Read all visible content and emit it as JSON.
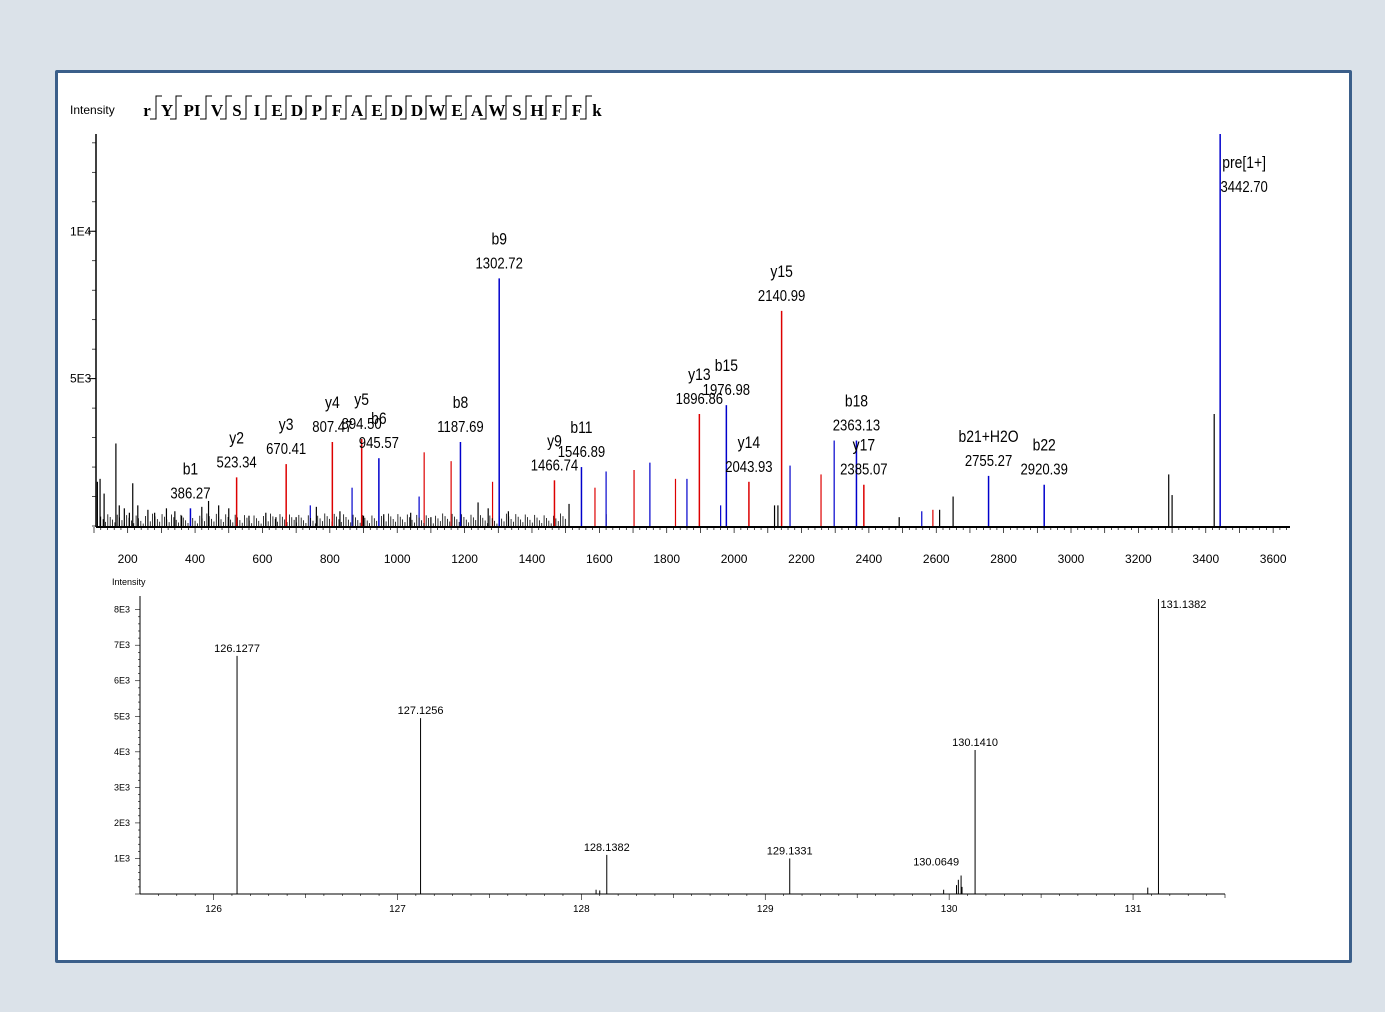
{
  "colors": {
    "b_ion": "#0000cc",
    "y_ion": "#dd0000",
    "other": "#000000",
    "frame": "#3b5f8a"
  },
  "chart_data": [
    {
      "type": "bar",
      "subtype": "ms2-spectrum",
      "ylabel": "Intensity",
      "xlim": [
        100,
        3650
      ],
      "ylim": [
        0,
        13300
      ],
      "x_ticks": [
        "200",
        "400",
        "600",
        "800",
        "1000",
        "1200",
        "1400",
        "1600",
        "1800",
        "2000",
        "2200",
        "2400",
        "2600",
        "2800",
        "3000",
        "3200",
        "3400",
        "3600"
      ],
      "y_ticks": [
        "5E3",
        "1E4"
      ],
      "sequence": [
        "r",
        "Y",
        "PI",
        "V",
        "S",
        "I",
        "E",
        "D",
        "P",
        "F",
        "A",
        "E",
        "D",
        "D",
        "W",
        "E",
        "A",
        "W",
        "S",
        "H",
        "F",
        "F",
        "k"
      ],
      "peaks": [
        {
          "mz": 386.27,
          "i": 600,
          "ion": "b",
          "name": "b1",
          "value": "386.27"
        },
        {
          "mz": 523.34,
          "i": 1650,
          "ion": "y",
          "name": "y2",
          "value": "523.34"
        },
        {
          "mz": 670.41,
          "i": 2100,
          "ion": "y",
          "name": "y3",
          "value": "670.41"
        },
        {
          "mz": 807.47,
          "i": 2850,
          "ion": "y",
          "name": "y4",
          "value": "807.47"
        },
        {
          "mz": 894.5,
          "i": 2950,
          "ion": "y",
          "name": "y5",
          "value": "894.50"
        },
        {
          "mz": 945.57,
          "i": 2300,
          "ion": "b",
          "name": "b6",
          "value": "945.57"
        },
        {
          "mz": 1187.69,
          "i": 2850,
          "ion": "b",
          "name": "b8",
          "value": "1187.69"
        },
        {
          "mz": 1302.72,
          "i": 8400,
          "ion": "b",
          "name": "b9",
          "value": "1302.72"
        },
        {
          "mz": 1466.74,
          "i": 1550,
          "ion": "y",
          "name": "y9",
          "value": "1466.74"
        },
        {
          "mz": 1546.89,
          "i": 2000,
          "ion": "b",
          "name": "b11",
          "value": "1546.89"
        },
        {
          "mz": 1896.86,
          "i": 3800,
          "ion": "y",
          "name": "y13",
          "value": "1896.86"
        },
        {
          "mz": 1976.98,
          "i": 4100,
          "ion": "b",
          "name": "b15",
          "value": "1976.98"
        },
        {
          "mz": 2043.93,
          "i": 1500,
          "ion": "y",
          "name": "y14",
          "value": "2043.93"
        },
        {
          "mz": 2140.99,
          "i": 7300,
          "ion": "y",
          "name": "y15",
          "value": "2140.99"
        },
        {
          "mz": 2363.13,
          "i": 2900,
          "ion": "b",
          "name": "b18",
          "value": "2363.13"
        },
        {
          "mz": 2385.07,
          "i": 1400,
          "ion": "y",
          "name": "y17",
          "value": "2385.07"
        },
        {
          "mz": 2755.27,
          "i": 1700,
          "ion": "b",
          "name": "b21+H2O",
          "value": "2755.27"
        },
        {
          "mz": 2920.39,
          "i": 1400,
          "ion": "b",
          "name": "b22",
          "value": "2920.39"
        },
        {
          "mz": 3442.7,
          "i": 13300,
          "ion": "b",
          "name": "pre[1+]",
          "value": "3442.70"
        }
      ],
      "unlabeled_peaks": [
        {
          "mz": 110,
          "i": 1500,
          "ion": "o"
        },
        {
          "mz": 118,
          "i": 1600,
          "ion": "o"
        },
        {
          "mz": 130,
          "i": 1100,
          "ion": "o"
        },
        {
          "mz": 165,
          "i": 2800,
          "ion": "o"
        },
        {
          "mz": 175,
          "i": 700,
          "ion": "o"
        },
        {
          "mz": 190,
          "i": 600,
          "ion": "o"
        },
        {
          "mz": 205,
          "i": 450,
          "ion": "o"
        },
        {
          "mz": 215,
          "i": 1450,
          "ion": "o"
        },
        {
          "mz": 230,
          "i": 700,
          "ion": "o"
        },
        {
          "mz": 260,
          "i": 550,
          "ion": "o"
        },
        {
          "mz": 280,
          "i": 450,
          "ion": "o"
        },
        {
          "mz": 315,
          "i": 600,
          "ion": "o"
        },
        {
          "mz": 340,
          "i": 500,
          "ion": "o"
        },
        {
          "mz": 360,
          "i": 350,
          "ion": "o"
        },
        {
          "mz": 420,
          "i": 650,
          "ion": "o"
        },
        {
          "mz": 440,
          "i": 850,
          "ion": "o"
        },
        {
          "mz": 470,
          "i": 700,
          "ion": "o"
        },
        {
          "mz": 500,
          "i": 600,
          "ion": "o"
        },
        {
          "mz": 560,
          "i": 350,
          "ion": "o"
        },
        {
          "mz": 610,
          "i": 450,
          "ion": "o"
        },
        {
          "mz": 640,
          "i": 300,
          "ion": "o"
        },
        {
          "mz": 700,
          "i": 300,
          "ion": "o"
        },
        {
          "mz": 760,
          "i": 650,
          "ion": "o"
        },
        {
          "mz": 830,
          "i": 500,
          "ion": "o"
        },
        {
          "mz": 900,
          "i": 350,
          "ion": "o"
        },
        {
          "mz": 960,
          "i": 400,
          "ion": "o"
        },
        {
          "mz": 1040,
          "i": 450,
          "ion": "o"
        },
        {
          "mz": 1100,
          "i": 300,
          "ion": "o"
        },
        {
          "mz": 1240,
          "i": 800,
          "ion": "o"
        },
        {
          "mz": 1270,
          "i": 600,
          "ion": "o"
        },
        {
          "mz": 1330,
          "i": 500,
          "ion": "o"
        },
        {
          "mz": 1510,
          "i": 750,
          "ion": "o"
        },
        {
          "mz": 1620,
          "i": 400,
          "ion": "o"
        },
        {
          "mz": 2120,
          "i": 700,
          "ion": "o"
        },
        {
          "mz": 2130,
          "i": 700,
          "ion": "o"
        },
        {
          "mz": 2490,
          "i": 300,
          "ion": "o"
        },
        {
          "mz": 2610,
          "i": 550,
          "ion": "o"
        },
        {
          "mz": 2650,
          "i": 1000,
          "ion": "o"
        },
        {
          "mz": 3290,
          "i": 1750,
          "ion": "o"
        },
        {
          "mz": 3300,
          "i": 1050,
          "ion": "o"
        },
        {
          "mz": 3425,
          "i": 3800,
          "ion": "o"
        },
        {
          "mz": 742,
          "i": 700,
          "ion": "b"
        },
        {
          "mz": 866,
          "i": 1300,
          "ion": "b"
        },
        {
          "mz": 1065,
          "i": 1000,
          "ion": "b"
        },
        {
          "mz": 1620,
          "i": 1850,
          "ion": "b"
        },
        {
          "mz": 1750,
          "i": 2150,
          "ion": "b"
        },
        {
          "mz": 1860,
          "i": 1600,
          "ion": "b"
        },
        {
          "mz": 1960,
          "i": 700,
          "ion": "b"
        },
        {
          "mz": 2166,
          "i": 2050,
          "ion": "b"
        },
        {
          "mz": 2297,
          "i": 2900,
          "ion": "b"
        },
        {
          "mz": 2557,
          "i": 500,
          "ion": "b"
        },
        {
          "mz": 1080,
          "i": 2500,
          "ion": "y"
        },
        {
          "mz": 1160,
          "i": 2200,
          "ion": "y"
        },
        {
          "mz": 1283,
          "i": 1500,
          "ion": "y"
        },
        {
          "mz": 1587,
          "i": 1300,
          "ion": "y"
        },
        {
          "mz": 1703,
          "i": 1900,
          "ion": "y"
        },
        {
          "mz": 1826,
          "i": 1600,
          "ion": "y"
        },
        {
          "mz": 2258,
          "i": 1750,
          "ion": "y"
        },
        {
          "mz": 2590,
          "i": 550,
          "ion": "y"
        }
      ]
    },
    {
      "type": "bar",
      "subtype": "reporter-ion-spectrum",
      "ylabel": "Intensity",
      "xlim": [
        125.6,
        131.5
      ],
      "ylim": [
        0,
        8300
      ],
      "x_ticks": [
        "126",
        "127",
        "128",
        "129",
        "130",
        "131"
      ],
      "y_ticks": [
        "1E3",
        "2E3",
        "3E3",
        "4E3",
        "5E3",
        "6E3",
        "7E3",
        "8E3"
      ],
      "peaks": [
        {
          "mz": 126.1277,
          "i": 6700,
          "label": "126.1277"
        },
        {
          "mz": 127.1256,
          "i": 4950,
          "label": "127.1256"
        },
        {
          "mz": 128.1382,
          "i": 1100,
          "label": "128.1382"
        },
        {
          "mz": 129.1331,
          "i": 1000,
          "label": "129.1331"
        },
        {
          "mz": 130.0649,
          "i": 520,
          "label": "130.0649"
        },
        {
          "mz": 130.141,
          "i": 4050,
          "label": "130.1410"
        },
        {
          "mz": 131.1382,
          "i": 8300,
          "label": "131.1382"
        }
      ],
      "unlabeled_peaks": [
        {
          "mz": 128.08,
          "i": 120
        },
        {
          "mz": 128.1,
          "i": 100
        },
        {
          "mz": 130.04,
          "i": 250
        },
        {
          "mz": 130.05,
          "i": 400
        },
        {
          "mz": 130.07,
          "i": 200
        },
        {
          "mz": 129.97,
          "i": 120
        },
        {
          "mz": 131.08,
          "i": 180
        }
      ]
    }
  ]
}
